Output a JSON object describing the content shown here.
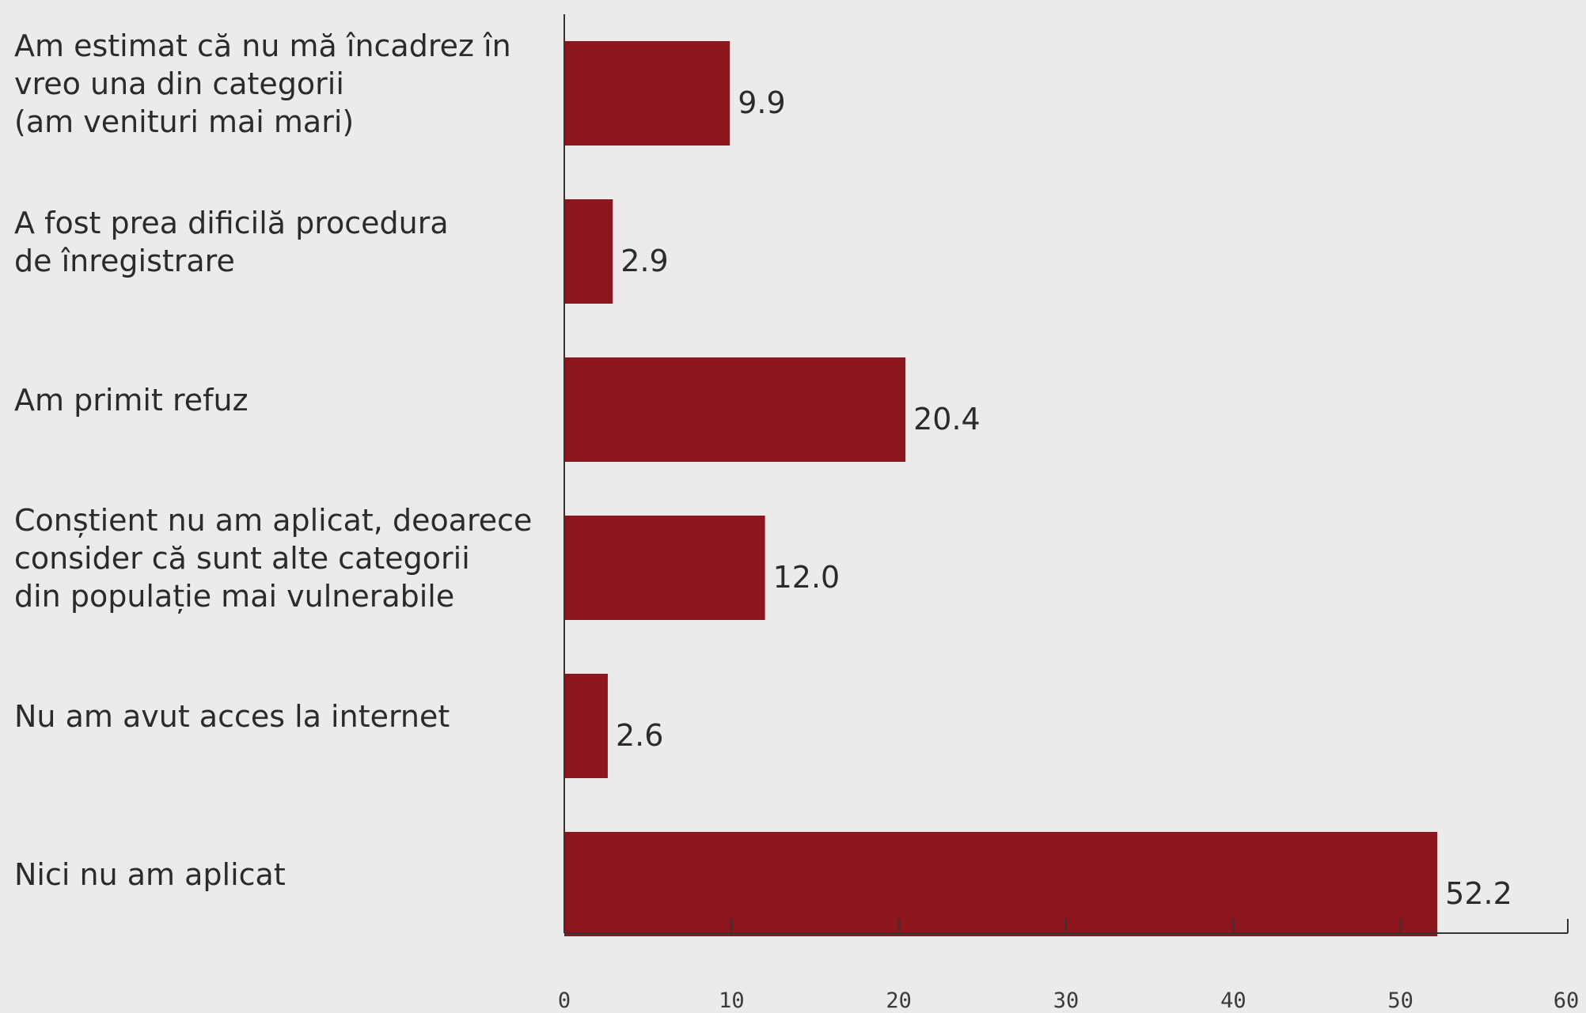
{
  "chart_data": {
    "type": "bar",
    "orientation": "horizontal",
    "categories": [
      "Am estimat că nu mă încadrez în\nvreo una din categorii\n(am venituri mai mari)",
      "A fost prea dificilă procedura\nde înregistrare",
      "Am primit refuz",
      "Conștient nu am aplicat, deoarece\nconsider că sunt alte categorii\ndin populație mai vulnerabile",
      "Nu am avut acces la internet",
      "Nici nu am aplicat"
    ],
    "values": [
      9.9,
      2.9,
      20.4,
      12.0,
      2.6,
      52.2
    ],
    "value_labels": [
      "9.9",
      "2.9",
      "20.4",
      "12.0",
      "2.6",
      "52.2"
    ],
    "xlim": [
      0,
      60
    ],
    "xticks": [
      "0",
      "10",
      "20",
      "30",
      "40",
      "50",
      "60"
    ],
    "grid": false,
    "colors": {
      "bar": "#8b161d",
      "axis": "#333333",
      "background": "#ebebea"
    }
  }
}
